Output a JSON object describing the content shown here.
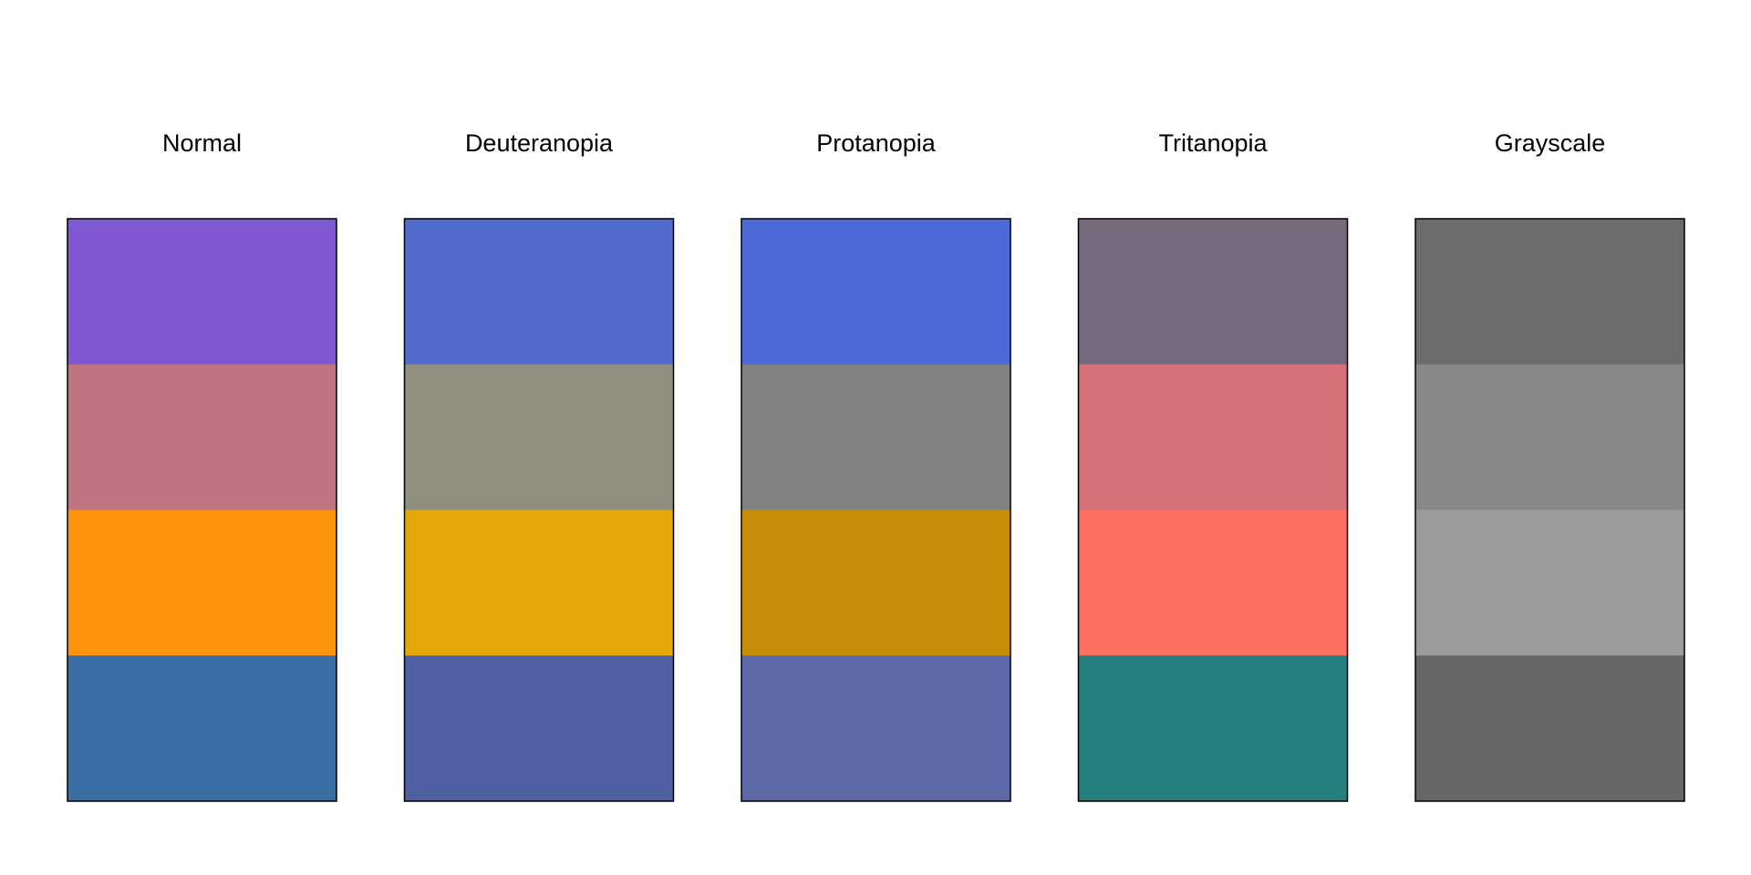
{
  "panels": [
    {
      "title": "Normal",
      "colors": [
        "#8058d3",
        "#c07480",
        "#fe930c",
        "#3a6ea5"
      ]
    },
    {
      "title": "Deuteranopia",
      "colors": [
        "#536bcd",
        "#918e80",
        "#e3a90b",
        "#505ea2"
      ]
    },
    {
      "title": "Protanopia",
      "colors": [
        "#4d69d8",
        "#818181",
        "#c98e07",
        "#5d69a6"
      ]
    },
    {
      "title": "Tritanopia",
      "colors": [
        "#776a7e",
        "#d3707a",
        "#fe6f62",
        "#277e7e"
      ]
    },
    {
      "title": "Grayscale",
      "colors": [
        "#6c6c6c",
        "#888888",
        "#9b9b9b",
        "#666666"
      ]
    }
  ]
}
